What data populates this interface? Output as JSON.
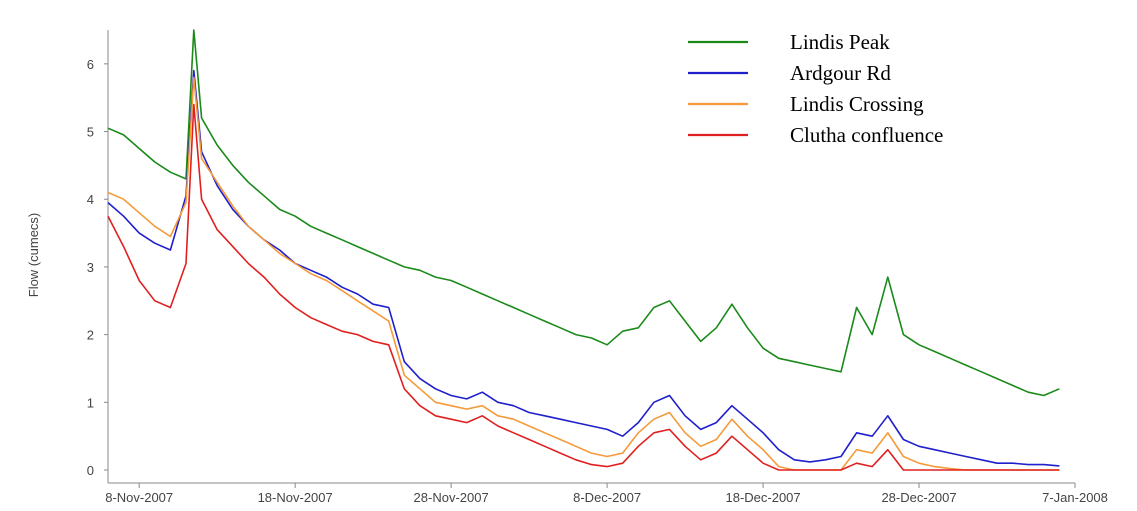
{
  "chart_data": {
    "type": "line",
    "title": "",
    "xlabel": "",
    "ylabel": "Flow (cumecs)",
    "xlim": [
      "2007-11-06",
      "2008-01-07"
    ],
    "ylim": [
      0,
      6.5
    ],
    "grid": false,
    "legend_position": "top-right",
    "x_ticks": [
      "8-Nov-2007",
      "18-Nov-2007",
      "28-Nov-2007",
      "8-Dec-2007",
      "18-Dec-2007",
      "28-Dec-2007",
      "7-Jan-2008"
    ],
    "y_ticks": [
      "0",
      "1",
      "2",
      "3",
      "4",
      "5",
      "6"
    ],
    "x": [
      "2007-11-06",
      "2007-11-07",
      "2007-11-08",
      "2007-11-09",
      "2007-11-10",
      "2007-11-11",
      "2007-11-11 12:00",
      "2007-11-12",
      "2007-11-13",
      "2007-11-14",
      "2007-11-15",
      "2007-11-16",
      "2007-11-17",
      "2007-11-18",
      "2007-11-19",
      "2007-11-20",
      "2007-11-21",
      "2007-11-22",
      "2007-11-23",
      "2007-11-24",
      "2007-11-25",
      "2007-11-26",
      "2007-11-27",
      "2007-11-28",
      "2007-11-29",
      "2007-11-30",
      "2007-12-01",
      "2007-12-02",
      "2007-12-03",
      "2007-12-04",
      "2007-12-05",
      "2007-12-06",
      "2007-12-07",
      "2007-12-08",
      "2007-12-09",
      "2007-12-10",
      "2007-12-11",
      "2007-12-12",
      "2007-12-13",
      "2007-12-14",
      "2007-12-15",
      "2007-12-16",
      "2007-12-17",
      "2007-12-18",
      "2007-12-19",
      "2007-12-20",
      "2007-12-21",
      "2007-12-22",
      "2007-12-23",
      "2007-12-24",
      "2007-12-25",
      "2007-12-26",
      "2007-12-27",
      "2007-12-28",
      "2007-12-29",
      "2007-12-30",
      "2007-12-31",
      "2008-01-01",
      "2008-01-02",
      "2008-01-03",
      "2008-01-04",
      "2008-01-05",
      "2008-01-06"
    ],
    "series": [
      {
        "name": "Lindis Peak",
        "color": "#1a8a1a",
        "values": [
          5.05,
          4.95,
          4.75,
          4.55,
          4.4,
          4.3,
          6.5,
          5.2,
          4.8,
          4.5,
          4.25,
          4.05,
          3.85,
          3.75,
          3.6,
          3.5,
          3.4,
          3.3,
          3.2,
          3.1,
          3.0,
          2.95,
          2.85,
          2.8,
          2.7,
          2.6,
          2.5,
          2.4,
          2.3,
          2.2,
          2.1,
          2.0,
          1.95,
          1.85,
          2.05,
          2.1,
          2.4,
          2.5,
          2.2,
          1.9,
          2.1,
          2.45,
          2.1,
          1.8,
          1.65,
          1.6,
          1.55,
          1.5,
          1.45,
          2.4,
          2.0,
          2.85,
          2.0,
          1.85,
          1.75,
          1.65,
          1.55,
          1.45,
          1.35,
          1.25,
          1.15,
          1.1,
          1.2
        ]
      },
      {
        "name": "Ardgour Rd",
        "color": "#1f1fcc",
        "values": [
          3.95,
          3.75,
          3.5,
          3.35,
          3.25,
          4.05,
          5.9,
          4.7,
          4.2,
          3.85,
          3.6,
          3.4,
          3.25,
          3.05,
          2.95,
          2.85,
          2.7,
          2.6,
          2.45,
          2.4,
          1.6,
          1.35,
          1.2,
          1.1,
          1.05,
          1.15,
          1.0,
          0.95,
          0.85,
          0.8,
          0.75,
          0.7,
          0.65,
          0.6,
          0.5,
          0.7,
          1.0,
          1.1,
          0.8,
          0.6,
          0.7,
          0.95,
          0.75,
          0.55,
          0.3,
          0.15,
          0.12,
          0.15,
          0.2,
          0.55,
          0.5,
          0.8,
          0.45,
          0.35,
          0.3,
          0.25,
          0.2,
          0.15,
          0.1,
          0.1,
          0.08,
          0.08,
          0.06
        ]
      },
      {
        "name": "Lindis Crossing",
        "color": "#f59a38",
        "values": [
          4.1,
          4.0,
          3.8,
          3.6,
          3.45,
          3.95,
          5.8,
          4.6,
          4.25,
          3.9,
          3.6,
          3.4,
          3.2,
          3.05,
          2.9,
          2.8,
          2.65,
          2.5,
          2.35,
          2.2,
          1.4,
          1.2,
          1.0,
          0.95,
          0.9,
          0.95,
          0.8,
          0.75,
          0.65,
          0.55,
          0.45,
          0.35,
          0.25,
          0.2,
          0.25,
          0.55,
          0.75,
          0.85,
          0.55,
          0.35,
          0.45,
          0.75,
          0.5,
          0.3,
          0.05,
          0.0,
          0.0,
          0.0,
          0.0,
          0.3,
          0.25,
          0.55,
          0.2,
          0.1,
          0.05,
          0.02,
          0.0,
          0.0,
          0.0,
          0.0,
          0.0,
          0.0,
          0.0
        ]
      },
      {
        "name": "Clutha confluence",
        "color": "#e02020",
        "values": [
          3.75,
          3.3,
          2.8,
          2.5,
          2.4,
          3.05,
          5.4,
          4.0,
          3.55,
          3.3,
          3.05,
          2.85,
          2.6,
          2.4,
          2.25,
          2.15,
          2.05,
          2.0,
          1.9,
          1.85,
          1.2,
          0.95,
          0.8,
          0.75,
          0.7,
          0.8,
          0.65,
          0.55,
          0.45,
          0.35,
          0.25,
          0.15,
          0.08,
          0.05,
          0.1,
          0.35,
          0.55,
          0.6,
          0.35,
          0.15,
          0.25,
          0.5,
          0.3,
          0.1,
          0.0,
          0.0,
          0.0,
          0.0,
          0.0,
          0.1,
          0.05,
          0.3,
          0.0,
          0.0,
          0.0,
          0.0,
          0.0,
          0.0,
          0.0,
          0.0,
          0.0,
          0.0,
          0.0
        ]
      }
    ]
  }
}
